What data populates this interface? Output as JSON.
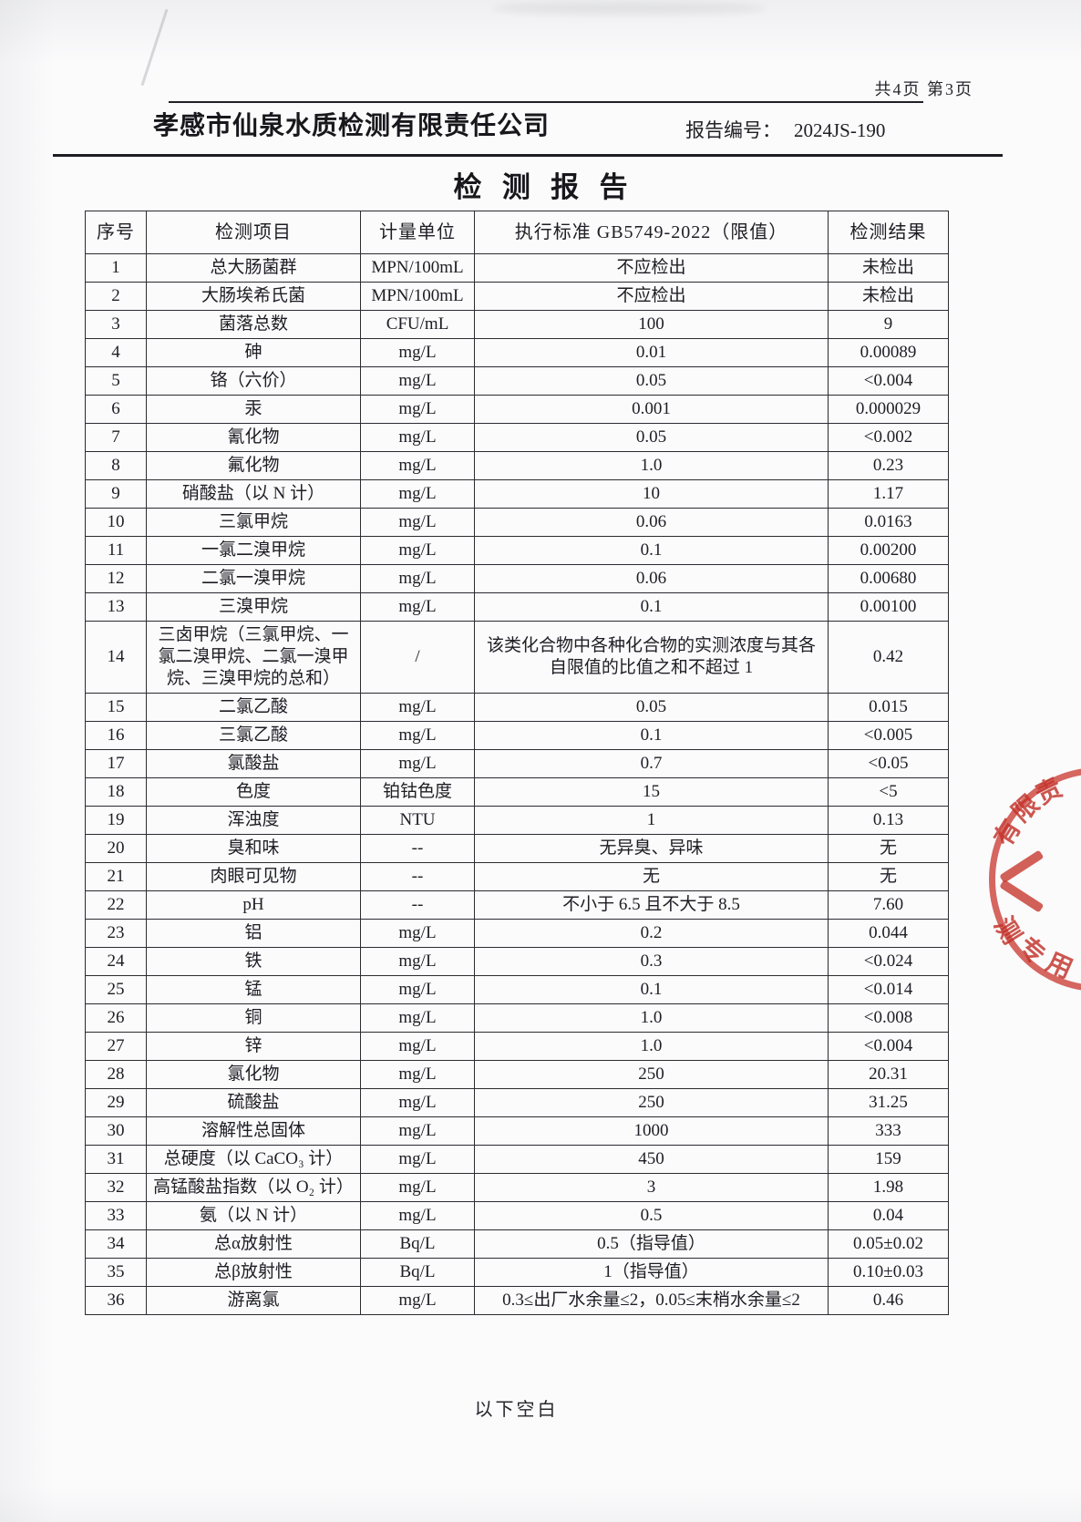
{
  "page": {
    "page_info": "共4页 第3页",
    "company": "孝感市仙泉水质检测有限责任公司",
    "report_no_label": "报告编号：",
    "report_no": "2024JS-190",
    "title": "检测报告",
    "footer": "以下空白"
  },
  "table": {
    "headers": [
      "序号",
      "检测项目",
      "计量单位",
      "执行标准 GB5749-2022（限值）",
      "检测结果"
    ],
    "rows": [
      [
        "1",
        "总大肠菌群",
        "MPN/100mL",
        "不应检出",
        "未检出"
      ],
      [
        "2",
        "大肠埃希氏菌",
        "MPN/100mL",
        "不应检出",
        "未检出"
      ],
      [
        "3",
        "菌落总数",
        "CFU/mL",
        "100",
        "9"
      ],
      [
        "4",
        "砷",
        "mg/L",
        "0.01",
        "0.00089"
      ],
      [
        "5",
        "铬（六价）",
        "mg/L",
        "0.05",
        "<0.004"
      ],
      [
        "6",
        "汞",
        "mg/L",
        "0.001",
        "0.000029"
      ],
      [
        "7",
        "氰化物",
        "mg/L",
        "0.05",
        "<0.002"
      ],
      [
        "8",
        "氟化物",
        "mg/L",
        "1.0",
        "0.23"
      ],
      [
        "9",
        "硝酸盐（以 N 计）",
        "mg/L",
        "10",
        "1.17"
      ],
      [
        "10",
        "三氯甲烷",
        "mg/L",
        "0.06",
        "0.0163"
      ],
      [
        "11",
        "一氯二溴甲烷",
        "mg/L",
        "0.1",
        "0.00200"
      ],
      [
        "12",
        "二氯一溴甲烷",
        "mg/L",
        "0.06",
        "0.00680"
      ],
      [
        "13",
        "三溴甲烷",
        "mg/L",
        "0.1",
        "0.00100"
      ],
      [
        "14",
        "三卤甲烷（三氯甲烷、一氯二溴甲烷、二氯一溴甲烷、三溴甲烷的总和）",
        "/",
        "该类化合物中各种化合物的实测浓度与其各自限值的比值之和不超过 1",
        "0.42"
      ],
      [
        "15",
        "二氯乙酸",
        "mg/L",
        "0.05",
        "0.015"
      ],
      [
        "16",
        "三氯乙酸",
        "mg/L",
        "0.1",
        "<0.005"
      ],
      [
        "17",
        "氯酸盐",
        "mg/L",
        "0.7",
        "<0.05"
      ],
      [
        "18",
        "色度",
        "铂钴色度",
        "15",
        "<5"
      ],
      [
        "19",
        "浑浊度",
        "NTU",
        "1",
        "0.13"
      ],
      [
        "20",
        "臭和味",
        "--",
        "无异臭、异味",
        "无"
      ],
      [
        "21",
        "肉眼可见物",
        "--",
        "无",
        "无"
      ],
      [
        "22",
        "pH",
        "--",
        "不小于 6.5 且不大于 8.5",
        "7.60"
      ],
      [
        "23",
        "铝",
        "mg/L",
        "0.2",
        "0.044"
      ],
      [
        "24",
        "铁",
        "mg/L",
        "0.3",
        "<0.024"
      ],
      [
        "25",
        "锰",
        "mg/L",
        "0.1",
        "<0.014"
      ],
      [
        "26",
        "铜",
        "mg/L",
        "1.0",
        "<0.008"
      ],
      [
        "27",
        "锌",
        "mg/L",
        "1.0",
        "<0.004"
      ],
      [
        "28",
        "氯化物",
        "mg/L",
        "250",
        "20.31"
      ],
      [
        "29",
        "硫酸盐",
        "mg/L",
        "250",
        "31.25"
      ],
      [
        "30",
        "溶解性总固体",
        "mg/L",
        "1000",
        "333"
      ],
      [
        "31",
        "总硬度（以 CaCO₃ 计）",
        "mg/L",
        "450",
        "159"
      ],
      [
        "32",
        "高锰酸盐指数（以 O₂ 计）",
        "mg/L",
        "3",
        "1.98"
      ],
      [
        "33",
        "氨（以 N 计）",
        "mg/L",
        "0.5",
        "0.04"
      ],
      [
        "34",
        "总α放射性",
        "Bq/L",
        "0.5（指导值）",
        "0.05±0.02"
      ],
      [
        "35",
        "总β放射性",
        "Bq/L",
        "1（指导值）",
        "0.10±0.03"
      ],
      [
        "36",
        "游离氯",
        "mg/L",
        "0.3≤出厂水余量≤2，0.05≤末梢水余量≤2",
        "0.46"
      ]
    ]
  },
  "stamp": {
    "arc_top_text": "有限责",
    "arc_bottom_text": "测专用",
    "color": "#ce3e34"
  }
}
